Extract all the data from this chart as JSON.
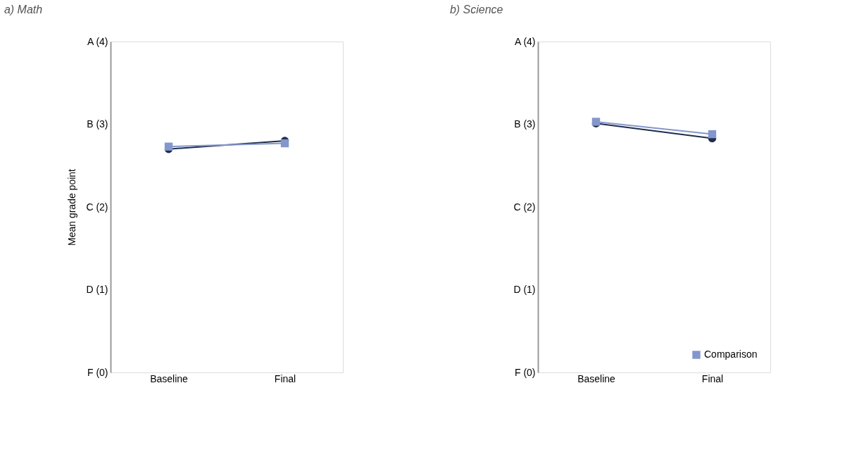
{
  "chart_data": [
    {
      "type": "line",
      "title": "a) Math",
      "ylabel": "Mean grade point",
      "categories": [
        "Baseline",
        "Final"
      ],
      "ylim": [
        0,
        4
      ],
      "yticks": [
        {
          "value": 0,
          "label": "F (0)"
        },
        {
          "value": 1,
          "label": "D (1)"
        },
        {
          "value": 2,
          "label": "C (2)"
        },
        {
          "value": 3,
          "label": "B (3)"
        },
        {
          "value": 4,
          "label": "A (4)"
        }
      ],
      "grid": false,
      "legend": false,
      "series": [
        {
          "color": "#1f2d4e",
          "marker": "circle",
          "values": [
            2.7,
            2.8
          ]
        },
        {
          "color": "#8497cc",
          "marker": "square",
          "values": [
            2.73,
            2.77
          ]
        }
      ]
    },
    {
      "type": "line",
      "title": "b) Science",
      "categories": [
        "Baseline",
        "Final"
      ],
      "ylim": [
        0,
        4
      ],
      "yticks": [
        {
          "value": 0,
          "label": "F (0)"
        },
        {
          "value": 1,
          "label": "D (1)"
        },
        {
          "value": 2,
          "label": "C (2)"
        },
        {
          "value": 3,
          "label": "B (3)"
        },
        {
          "value": 4,
          "label": "A (4)"
        }
      ],
      "grid": false,
      "legend": "bottom right",
      "series": [
        {
          "color": "#1f2d4e",
          "marker": "circle",
          "values": [
            3.01,
            2.83
          ]
        },
        {
          "name": "Comparison",
          "color": "#8497cc",
          "marker": "square",
          "values": [
            3.03,
            2.88
          ]
        }
      ]
    }
  ]
}
